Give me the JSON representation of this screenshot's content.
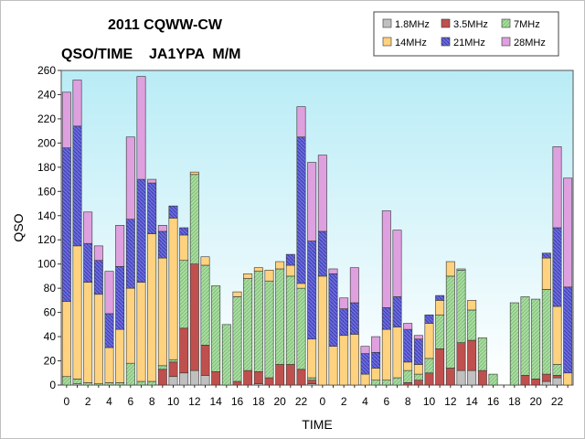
{
  "chart_data": {
    "type": "bar",
    "stacked": true,
    "title_line1": "2011 CQWW-CW",
    "title_line2": "QSO/TIME    JA1YPA  M/M",
    "xlabel": "TIME",
    "ylabel": "QSO",
    "ylim": [
      0,
      260
    ],
    "yticks": [
      0,
      20,
      40,
      60,
      80,
      100,
      120,
      140,
      160,
      180,
      200,
      220,
      240,
      260
    ],
    "grid": false,
    "legend_position": "top-right",
    "x_tick_labels": [
      "0",
      "2",
      "4",
      "6",
      "8",
      "10",
      "12",
      "14",
      "16",
      "18",
      "20",
      "22",
      "0",
      "2",
      "4",
      "6",
      "8",
      "10",
      "12",
      "14",
      "16",
      "18",
      "20",
      "22"
    ],
    "hours": [
      "0",
      "1",
      "2",
      "3",
      "4",
      "5",
      "6",
      "7",
      "8",
      "9",
      "10",
      "11",
      "12",
      "13",
      "14",
      "15",
      "16",
      "17",
      "18",
      "19",
      "20",
      "21",
      "22",
      "23",
      "0",
      "1",
      "2",
      "3",
      "4",
      "5",
      "6",
      "7",
      "8",
      "9",
      "10",
      "11",
      "12",
      "13",
      "14",
      "15",
      "16",
      "17",
      "18",
      "19",
      "20",
      "21",
      "22",
      "23"
    ],
    "colors": {
      "1.8MHz": "#c0c0c0",
      "3.5MHz": "#c0504d",
      "7MHz": "#a9dca0",
      "14MHz": "#ffd27f",
      "21MHz": "#5f5fd0",
      "28MHz": "#dfa0df"
    },
    "series": [
      {
        "name": "1.8MHz",
        "values": [
          0,
          1,
          0,
          0,
          0,
          0,
          0,
          0,
          0,
          0,
          7,
          10,
          12,
          8,
          0,
          0,
          0,
          0,
          1,
          0,
          0,
          0,
          0,
          1,
          0,
          0,
          0,
          0,
          0,
          0,
          0,
          0,
          0,
          0,
          0,
          0,
          0,
          12,
          12,
          0,
          0,
          0,
          0,
          0,
          0,
          3,
          6,
          0
        ]
      },
      {
        "name": "3.5MHz",
        "values": [
          0,
          0,
          0,
          0,
          0,
          0,
          0,
          0,
          0,
          13,
          12,
          37,
          88,
          25,
          11,
          0,
          3,
          12,
          10,
          6,
          17,
          17,
          13,
          3,
          0,
          0,
          0,
          0,
          0,
          0,
          0,
          0,
          2,
          4,
          10,
          30,
          14,
          23,
          25,
          12,
          0,
          0,
          0,
          8,
          5,
          6,
          2,
          0
        ]
      },
      {
        "name": "7MHz",
        "values": [
          7,
          4,
          2,
          1,
          2,
          2,
          18,
          3,
          3,
          3,
          2,
          56,
          74,
          66,
          71,
          50,
          70,
          76,
          83,
          80,
          79,
          73,
          67,
          2,
          0,
          0,
          0,
          0,
          0,
          4,
          4,
          6,
          10,
          5,
          12,
          28,
          76,
          60,
          25,
          27,
          9,
          0,
          68,
          65,
          66,
          70,
          9,
          0
        ]
      },
      {
        "name": "14MHz",
        "values": [
          62,
          110,
          83,
          74,
          29,
          44,
          62,
          82,
          122,
          89,
          117,
          21,
          2,
          7,
          0,
          0,
          4,
          4,
          3,
          9,
          6,
          9,
          4,
          32,
          90,
          32,
          41,
          42,
          9,
          10,
          42,
          42,
          7,
          8,
          29,
          12,
          12,
          1,
          8,
          0,
          0,
          0,
          0,
          0,
          0,
          26,
          48,
          10
        ]
      },
      {
        "name": "21MHz",
        "values": [
          127,
          99,
          32,
          28,
          28,
          52,
          57,
          85,
          42,
          22,
          10,
          6,
          0,
          0,
          0,
          0,
          0,
          0,
          0,
          0,
          0,
          9,
          121,
          81,
          37,
          60,
          22,
          26,
          17,
          13,
          18,
          25,
          27,
          21,
          7,
          4,
          0,
          0,
          0,
          0,
          0,
          0,
          0,
          0,
          0,
          4,
          65,
          71
        ]
      },
      {
        "name": "28MHz",
        "values": [
          46,
          38,
          26,
          12,
          35,
          34,
          68,
          85,
          3,
          5,
          0,
          0,
          0,
          0,
          0,
          0,
          0,
          0,
          0,
          0,
          0,
          0,
          25,
          65,
          63,
          4,
          9,
          29,
          6,
          13,
          80,
          55,
          5,
          3,
          0,
          0,
          0,
          0,
          0,
          0,
          0,
          0,
          0,
          0,
          0,
          0,
          67,
          90
        ]
      }
    ]
  }
}
